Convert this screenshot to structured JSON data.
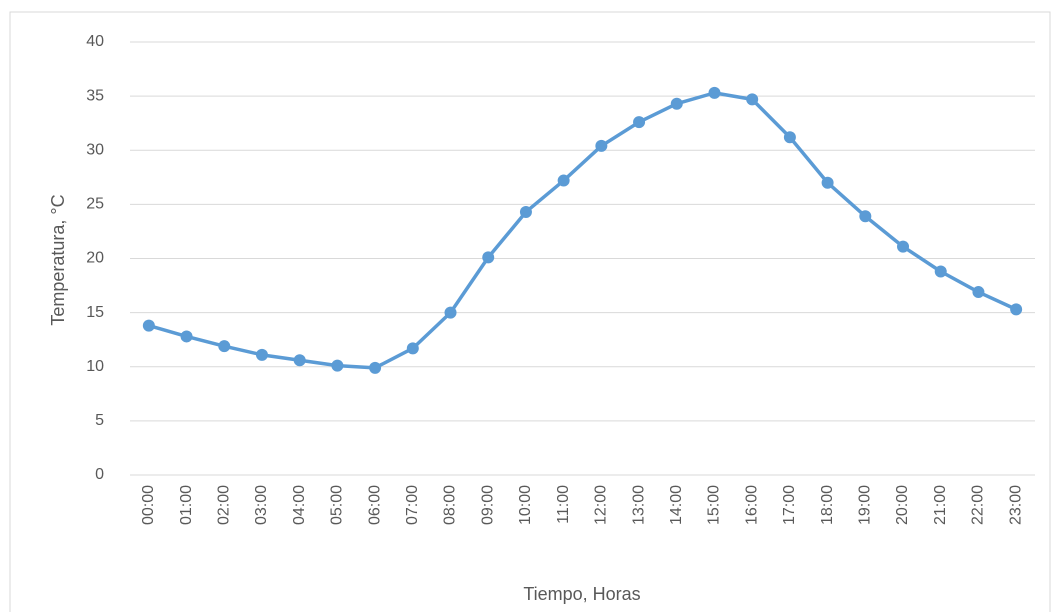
{
  "chart_data": {
    "type": "line",
    "y_label": "Temperatura, °C",
    "x_label": "Tiempo, Horas",
    "categories": [
      "00:00",
      "01:00",
      "02:00",
      "03:00",
      "04:00",
      "05:00",
      "06:00",
      "07:00",
      "08:00",
      "09:00",
      "10:00",
      "11:00",
      "12:00",
      "13:00",
      "14:00",
      "15:00",
      "16:00",
      "17:00",
      "18:00",
      "19:00",
      "20:00",
      "21:00",
      "22:00",
      "23:00"
    ],
    "series": [
      {
        "name": "Temperatura",
        "color": "#5b9bd5",
        "values": [
          13.8,
          12.8,
          11.9,
          11.1,
          10.6,
          10.1,
          9.9,
          11.7,
          15.0,
          20.1,
          24.3,
          27.2,
          30.4,
          32.6,
          34.3,
          35.3,
          34.7,
          31.2,
          27.0,
          23.9,
          21.1,
          18.8,
          16.9,
          15.3
        ]
      }
    ],
    "ylim": [
      0,
      40
    ],
    "yticks": [
      0,
      5,
      10,
      15,
      20,
      25,
      30,
      35,
      40
    ],
    "grid": true,
    "legend": false
  }
}
